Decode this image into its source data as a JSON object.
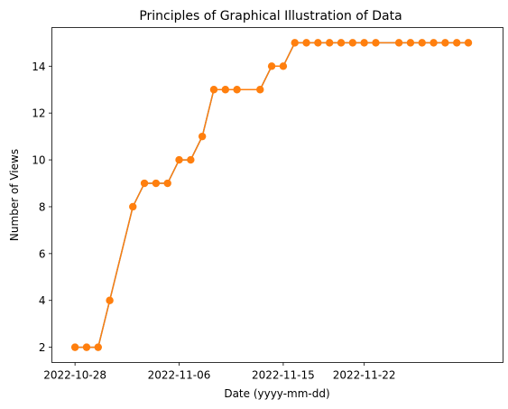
{
  "chart_data": {
    "type": "line",
    "title": "Principles of Graphical Illustration of Data",
    "xlabel": "Date (yyyy-mm-dd)",
    "ylabel": "Number of Views",
    "x_type": "date",
    "xlim": [
      "2022-10-26",
      "2022-12-04"
    ],
    "ylim": [
      1.35,
      15.65
    ],
    "x_ticks": [
      "2022-10-28",
      "2022-11-06",
      "2022-11-15",
      "2022-11-22"
    ],
    "y_ticks": [
      2,
      4,
      6,
      8,
      10,
      12,
      14
    ],
    "grid": false,
    "series": [
      {
        "color": "#ff7f0e",
        "line_color": "#ff7f0e",
        "underlay_color": "#1f77b4",
        "marker": "circle",
        "points": [
          {
            "x": "2022-10-28",
            "y": 2
          },
          {
            "x": "2022-10-29",
            "y": 2
          },
          {
            "x": "2022-10-30",
            "y": 2
          },
          {
            "x": "2022-10-31",
            "y": 4
          },
          {
            "x": "2022-11-02",
            "y": 8
          },
          {
            "x": "2022-11-03",
            "y": 9
          },
          {
            "x": "2022-11-04",
            "y": 9
          },
          {
            "x": "2022-11-05",
            "y": 9
          },
          {
            "x": "2022-11-06",
            "y": 10
          },
          {
            "x": "2022-11-07",
            "y": 10
          },
          {
            "x": "2022-11-08",
            "y": 11
          },
          {
            "x": "2022-11-09",
            "y": 13
          },
          {
            "x": "2022-11-10",
            "y": 13
          },
          {
            "x": "2022-11-11",
            "y": 13
          },
          {
            "x": "2022-11-13",
            "y": 13
          },
          {
            "x": "2022-11-14",
            "y": 14
          },
          {
            "x": "2022-11-15",
            "y": 14
          },
          {
            "x": "2022-11-16",
            "y": 15
          },
          {
            "x": "2022-11-17",
            "y": 15
          },
          {
            "x": "2022-11-18",
            "y": 15
          },
          {
            "x": "2022-11-19",
            "y": 15
          },
          {
            "x": "2022-11-20",
            "y": 15
          },
          {
            "x": "2022-11-21",
            "y": 15
          },
          {
            "x": "2022-11-22",
            "y": 15
          },
          {
            "x": "2022-11-23",
            "y": 15
          },
          {
            "x": "2022-11-25",
            "y": 15
          },
          {
            "x": "2022-11-26",
            "y": 15
          },
          {
            "x": "2022-11-27",
            "y": 15
          },
          {
            "x": "2022-11-28",
            "y": 15
          },
          {
            "x": "2022-11-29",
            "y": 15
          },
          {
            "x": "2022-11-30",
            "y": 15
          },
          {
            "x": "2022-12-01",
            "y": 15
          }
        ]
      }
    ]
  }
}
